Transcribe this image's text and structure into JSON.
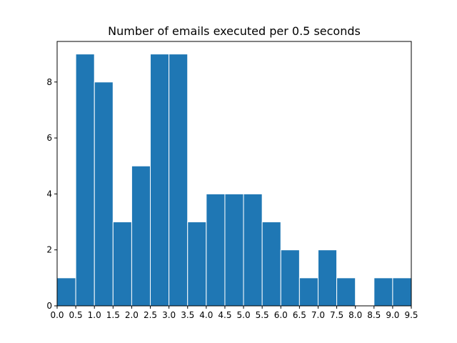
{
  "chart_data": {
    "type": "bar",
    "title": "Number of emails executed per 0.5 seconds",
    "xlabel": "",
    "ylabel": "",
    "bin_edges": [
      0.0,
      0.5,
      1.0,
      1.5,
      2.0,
      2.5,
      3.0,
      3.5,
      4.0,
      4.5,
      5.0,
      5.5,
      6.0,
      6.5,
      7.0,
      7.5,
      8.0,
      8.5,
      9.0,
      9.5
    ],
    "values": [
      1,
      9,
      8,
      3,
      5,
      9,
      9,
      3,
      4,
      4,
      4,
      3,
      2,
      1,
      2,
      1,
      0,
      1,
      1
    ],
    "xlim": [
      0.0,
      9.5
    ],
    "ylim": [
      0,
      9.45
    ],
    "xticks": [
      "0.0",
      "0.5",
      "1.0",
      "1.5",
      "2.0",
      "2.5",
      "3.0",
      "3.5",
      "4.0",
      "4.5",
      "5.0",
      "5.5",
      "6.0",
      "6.5",
      "7.0",
      "7.5",
      "8.0",
      "8.5",
      "9.0",
      "9.5"
    ],
    "yticks": [
      0,
      2,
      4,
      6,
      8
    ],
    "grid": false,
    "bar_color": "#1f77b4",
    "edge_color": "#ffffff"
  }
}
